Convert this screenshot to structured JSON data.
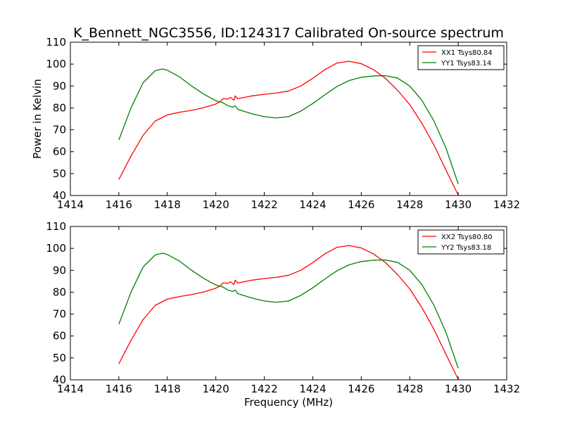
{
  "figure": {
    "title": "K_Bennett_NGC3556, ID:124317 Calibrated On-source spectrum"
  },
  "chart_data": [
    {
      "type": "line",
      "title": "K_Bennett_NGC3556, ID:124317 Calibrated On-source spectrum",
      "xlabel": "",
      "ylabel": "Power in Kelvin",
      "xlim": [
        1414,
        1432
      ],
      "ylim": [
        40,
        110
      ],
      "xticks": [
        1414,
        1416,
        1418,
        1420,
        1422,
        1424,
        1426,
        1428,
        1430,
        1432
      ],
      "yticks": [
        40,
        50,
        60,
        70,
        80,
        90,
        100,
        110
      ],
      "grid": false,
      "legend_position": "top-right",
      "series": [
        {
          "name": "XX1 Tsys80.84",
          "color": "#ff0000",
          "x": [
            1416.0,
            1416.5,
            1417.0,
            1417.5,
            1418.0,
            1418.5,
            1419.0,
            1419.5,
            1420.0,
            1420.2,
            1420.3,
            1420.5,
            1420.6,
            1420.75,
            1420.8,
            1420.9,
            1421.0,
            1421.5,
            1422.0,
            1422.5,
            1423.0,
            1423.5,
            1424.0,
            1424.5,
            1425.0,
            1425.5,
            1426.0,
            1426.5,
            1427.0,
            1427.5,
            1428.0,
            1428.5,
            1429.0,
            1429.5,
            1430.0
          ],
          "y": [
            47.3,
            58.0,
            67.5,
            74.0,
            76.8,
            78.0,
            78.9,
            80.1,
            81.8,
            83.0,
            84.3,
            84.0,
            84.8,
            83.5,
            85.5,
            84.2,
            84.4,
            85.5,
            86.2,
            86.8,
            87.7,
            90.0,
            93.5,
            97.5,
            100.5,
            101.3,
            100.2,
            97.5,
            93.5,
            88.0,
            81.5,
            73.0,
            63.0,
            51.5,
            40.2
          ]
        },
        {
          "name": "YY1 Tsys83.14",
          "color": "#007f00",
          "x": [
            1416.0,
            1416.5,
            1417.0,
            1417.5,
            1417.8,
            1418.0,
            1418.5,
            1419.0,
            1419.5,
            1420.0,
            1420.3,
            1420.5,
            1420.7,
            1420.8,
            1420.9,
            1421.0,
            1421.5,
            1422.0,
            1422.5,
            1423.0,
            1423.5,
            1424.0,
            1424.5,
            1425.0,
            1425.5,
            1426.0,
            1426.5,
            1427.0,
            1427.5,
            1428.0,
            1428.5,
            1429.0,
            1429.5,
            1430.0
          ],
          "y": [
            65.4,
            80.0,
            91.5,
            97.0,
            97.8,
            97.2,
            94.2,
            90.0,
            86.3,
            83.3,
            82.3,
            81.0,
            80.3,
            81.0,
            79.4,
            79.0,
            77.3,
            76.0,
            75.4,
            76.0,
            78.5,
            82.0,
            86.0,
            89.8,
            92.5,
            94.0,
            94.6,
            94.7,
            93.6,
            90.0,
            83.5,
            74.0,
            61.5,
            45.3
          ]
        }
      ]
    },
    {
      "type": "line",
      "title": "",
      "xlabel": "Frequency (MHz)",
      "ylabel": "",
      "xlim": [
        1414,
        1432
      ],
      "ylim": [
        40,
        110
      ],
      "xticks": [
        1414,
        1416,
        1418,
        1420,
        1422,
        1424,
        1426,
        1428,
        1430,
        1432
      ],
      "yticks": [
        40,
        50,
        60,
        70,
        80,
        90,
        100,
        110
      ],
      "grid": false,
      "legend_position": "top-right",
      "series": [
        {
          "name": "XX2 Tsys80.80",
          "color": "#ff0000",
          "x": [
            1416.0,
            1416.5,
            1417.0,
            1417.5,
            1418.0,
            1418.5,
            1419.0,
            1419.5,
            1420.0,
            1420.2,
            1420.3,
            1420.5,
            1420.6,
            1420.75,
            1420.8,
            1420.9,
            1421.0,
            1421.5,
            1422.0,
            1422.5,
            1423.0,
            1423.5,
            1424.0,
            1424.5,
            1425.0,
            1425.5,
            1426.0,
            1426.5,
            1427.0,
            1427.5,
            1428.0,
            1428.5,
            1429.0,
            1429.5,
            1430.0
          ],
          "y": [
            47.3,
            58.0,
            67.5,
            74.0,
            76.8,
            78.0,
            78.9,
            80.1,
            81.8,
            83.0,
            84.3,
            84.0,
            84.8,
            83.5,
            85.5,
            84.2,
            84.4,
            85.5,
            86.2,
            86.8,
            87.7,
            90.0,
            93.5,
            97.5,
            100.5,
            101.3,
            100.2,
            97.5,
            93.5,
            88.0,
            81.5,
            73.0,
            63.0,
            51.5,
            40.2
          ]
        },
        {
          "name": "YY2 Tsys83.18",
          "color": "#007f00",
          "x": [
            1416.0,
            1416.5,
            1417.0,
            1417.5,
            1417.8,
            1418.0,
            1418.5,
            1419.0,
            1419.5,
            1420.0,
            1420.3,
            1420.5,
            1420.7,
            1420.8,
            1420.9,
            1421.0,
            1421.5,
            1422.0,
            1422.5,
            1423.0,
            1423.5,
            1424.0,
            1424.5,
            1425.0,
            1425.5,
            1426.0,
            1426.5,
            1427.0,
            1427.5,
            1428.0,
            1428.5,
            1429.0,
            1429.5,
            1430.0
          ],
          "y": [
            65.4,
            80.0,
            91.5,
            97.0,
            97.8,
            97.2,
            94.2,
            90.0,
            86.3,
            83.3,
            82.3,
            81.0,
            80.3,
            81.0,
            79.4,
            79.0,
            77.3,
            76.0,
            75.4,
            76.0,
            78.5,
            82.0,
            86.0,
            89.8,
            92.5,
            94.0,
            94.6,
            94.7,
            93.6,
            90.0,
            83.5,
            74.0,
            61.5,
            45.3
          ]
        }
      ]
    }
  ]
}
